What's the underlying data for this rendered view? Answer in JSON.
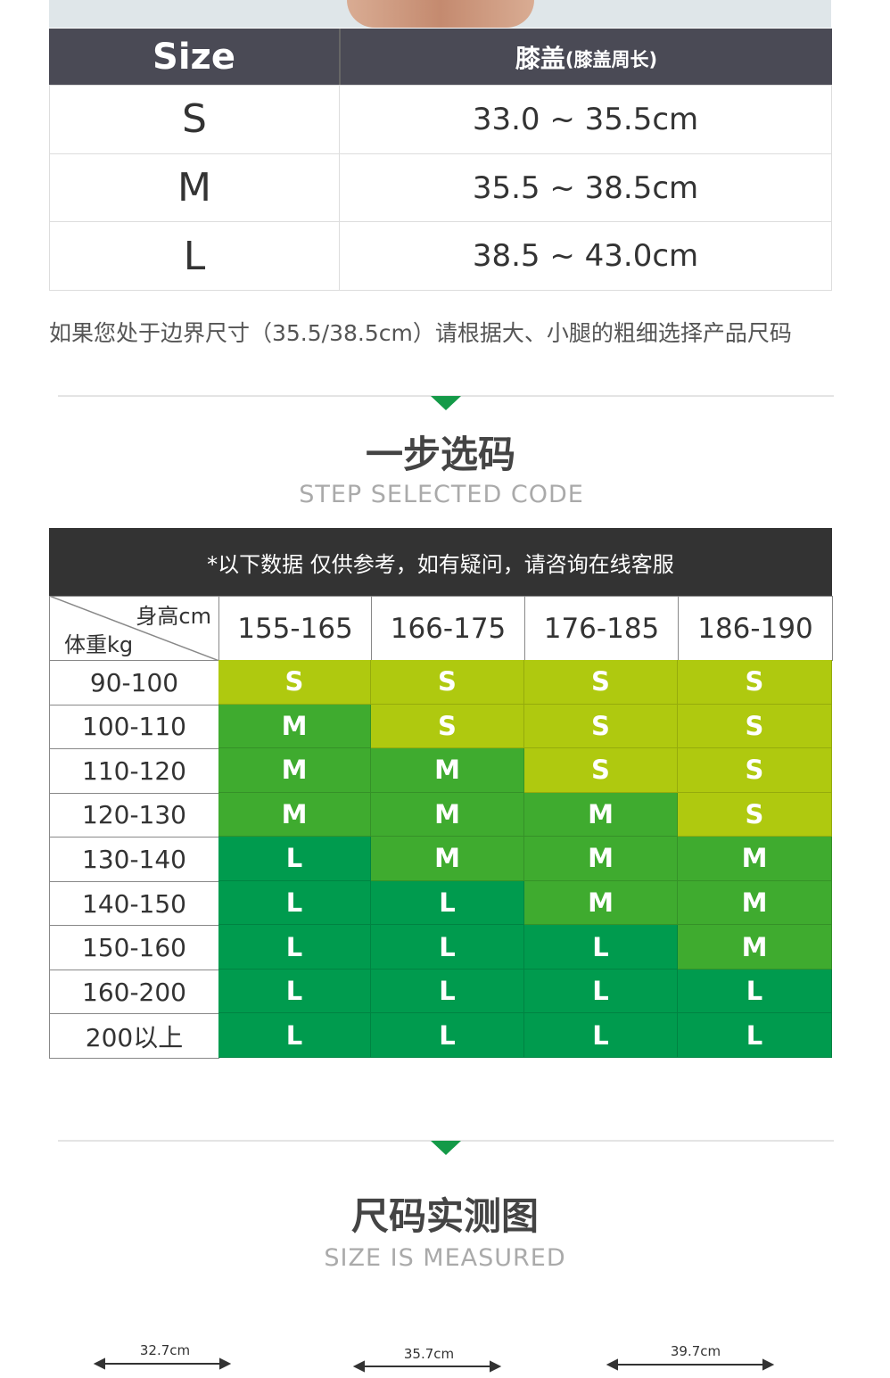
{
  "size_table": {
    "header_size": "Size",
    "header_part": "膝盖",
    "header_note": "(膝盖周长)",
    "rows": [
      [
        "S",
        "33.0 ~ 35.5cm"
      ],
      [
        "M",
        "35.5 ~ 38.5cm"
      ],
      [
        "L",
        "38.5 ~ 43.0cm"
      ]
    ]
  },
  "note": "如果您处于边界尺寸（35.5/38.5cm）请根据大、小腿的粗细选择产品尺码",
  "section1": {
    "title": "一步选码",
    "subtitle": "STEP SELECTED CODE"
  },
  "chart": {
    "notice": "*以下数据 仅供参考，如有疑问，请咨询在线客服",
    "corner_top": "身高cm",
    "corner_bottom": "体重kg",
    "heights": [
      "155-165",
      "166-175",
      "176-185",
      "186-190"
    ],
    "size_colors": {
      "S": "#afc90f",
      "M": "#3fab2f",
      "L": "#009b4e"
    },
    "rows": [
      {
        "weight": "90-100",
        "sizes": [
          "S",
          "S",
          "S",
          "S"
        ]
      },
      {
        "weight": "100-110",
        "sizes": [
          "M",
          "S",
          "S",
          "S"
        ]
      },
      {
        "weight": "110-120",
        "sizes": [
          "M",
          "M",
          "S",
          "S"
        ]
      },
      {
        "weight": "120-130",
        "sizes": [
          "M",
          "M",
          "M",
          "S"
        ]
      },
      {
        "weight": "130-140",
        "sizes": [
          "L",
          "M",
          "M",
          "M"
        ]
      },
      {
        "weight": "140-150",
        "sizes": [
          "L",
          "L",
          "M",
          "M"
        ]
      },
      {
        "weight": "150-160",
        "sizes": [
          "L",
          "L",
          "L",
          "M"
        ]
      },
      {
        "weight": "160-200",
        "sizes": [
          "L",
          "L",
          "L",
          "L"
        ]
      },
      {
        "weight": "200以上",
        "sizes": [
          "L",
          "L",
          "L",
          "L"
        ]
      }
    ]
  },
  "section2": {
    "title": "尺码实测图",
    "subtitle": "SIZE IS MEASURED"
  },
  "measurements": [
    "32.7cm",
    "35.7cm",
    "39.7cm"
  ]
}
